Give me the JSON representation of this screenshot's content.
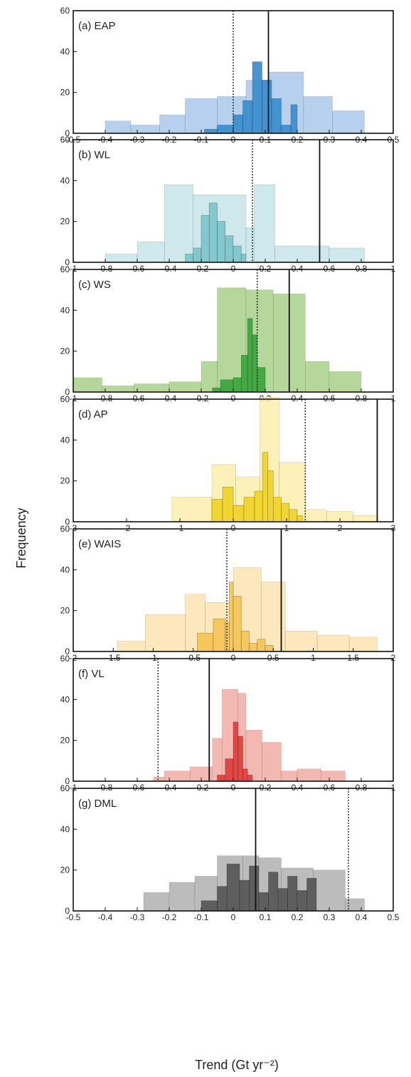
{
  "ylabel": "Frequency",
  "xlabel": "Trend (Gt yr⁻²)",
  "chart_data": [
    {
      "type": "bar",
      "title": "(a) EAP",
      "xlim": [
        -0.5,
        0.5
      ],
      "ylim": [
        0,
        60
      ],
      "xticks": [
        "-0.5",
        "-0.4",
        "-0.3",
        "-0.2",
        "-0.1",
        "0",
        "0.1",
        "0.2",
        "0.3",
        "0.4",
        "0.5"
      ],
      "yticks": [
        "0",
        "20",
        "40",
        "60"
      ],
      "colors": {
        "wide": "#a9c8ea",
        "narrow": "#3d8fd0"
      },
      "series": [
        {
          "edges": [
            -0.4,
            -0.32,
            -0.23,
            -0.15,
            -0.05,
            0.04,
            0.11,
            0.22,
            0.31,
            0.41
          ],
          "values": [
            6,
            4,
            9,
            17,
            18,
            26,
            30,
            18,
            11
          ]
        },
        {
          "edges": [
            -0.09,
            -0.05,
            0,
            0.03,
            0.06,
            0.09,
            0.12,
            0.15,
            0.18,
            0.2
          ],
          "values": [
            2,
            4,
            9,
            16,
            35,
            26,
            17,
            4,
            14
          ]
        }
      ],
      "lines": {
        "solid": 0.11,
        "dotted": 0.0
      }
    },
    {
      "type": "bar",
      "title": "(b) WL",
      "xlim": [
        -1,
        1
      ],
      "ylim": [
        0,
        60
      ],
      "xticks": [
        "-1",
        "-0.8",
        "-0.6",
        "-0.4",
        "-0.2",
        "0",
        "0.2",
        "0.4",
        "0.6",
        "0.8",
        "1"
      ],
      "yticks": [
        "0",
        "20",
        "40",
        "60"
      ],
      "colors": {
        "wide": "#c5e4e8",
        "narrow": "#7dc6cc"
      },
      "series": [
        {
          "edges": [
            -0.8,
            -0.6,
            -0.43,
            -0.25,
            0.08,
            0.13,
            0.26,
            0.6,
            0.82
          ],
          "values": [
            4,
            10,
            38,
            33,
            17,
            38,
            8,
            7
          ]
        },
        {
          "edges": [
            -0.3,
            -0.25,
            -0.2,
            -0.15,
            -0.1,
            -0.05,
            0,
            0.05,
            0.08
          ],
          "values": [
            4,
            7,
            23,
            29,
            20,
            13,
            8,
            4
          ]
        }
      ],
      "lines": {
        "solid": 0.54,
        "dotted": 0.12
      }
    },
    {
      "type": "bar",
      "title": "(c) WS",
      "xlim": [
        -1,
        1
      ],
      "ylim": [
        0,
        60
      ],
      "xticks": [
        "-1",
        "-0.8",
        "-0.6",
        "-0.4",
        "-0.2",
        "0",
        "0.2",
        "0.4",
        "0.6",
        "0.8",
        "1"
      ],
      "yticks": [
        "0",
        "20",
        "40",
        "60"
      ],
      "colors": {
        "wide": "#a8d08a",
        "narrow": "#3ea63e"
      },
      "series": [
        {
          "edges": [
            -1,
            -0.82,
            -0.62,
            -0.4,
            -0.2,
            -0.1,
            0.08,
            0.25,
            0.45,
            0.6,
            0.8
          ],
          "values": [
            7,
            3,
            4,
            5,
            15,
            51,
            50,
            48,
            15,
            10
          ]
        },
        {
          "edges": [
            -0.13,
            -0.08,
            0,
            0.05,
            0.09,
            0.12,
            0.15,
            0.2
          ],
          "values": [
            2,
            6,
            7,
            18,
            36,
            28,
            12
          ]
        }
      ],
      "lines": {
        "solid": 0.35,
        "dotted": 0.15
      }
    },
    {
      "type": "bar",
      "title": "(d) AP",
      "xlim": [
        -3,
        3
      ],
      "ylim": [
        0,
        60
      ],
      "xticks": [
        "-3",
        "-2",
        "-1",
        "0",
        "1",
        "2",
        "3"
      ],
      "yticks": [
        "0",
        "20",
        "40",
        "60"
      ],
      "colors": {
        "wide": "#fbeeac",
        "narrow": "#f0d42a"
      },
      "series": [
        {
          "edges": [
            -1.15,
            -0.4,
            0.05,
            0.5,
            0.86,
            1.35,
            1.75,
            2.25,
            2.7
          ],
          "values": [
            12,
            28,
            22,
            61,
            29,
            6,
            5,
            3
          ]
        },
        {
          "edges": [
            -0.4,
            -0.2,
            0,
            0.2,
            0.4,
            0.55,
            0.65,
            0.75,
            0.9,
            1.05,
            1.2,
            1.3
          ],
          "values": [
            11,
            17,
            8,
            12,
            15,
            34,
            25,
            12,
            9,
            6,
            3
          ]
        }
      ],
      "lines": {
        "solid": 2.7,
        "dotted": 1.35
      }
    },
    {
      "type": "bar",
      "title": "(e) WAIS",
      "xlim": [
        -2,
        2
      ],
      "ylim": [
        0,
        60
      ],
      "xticks": [
        "-2",
        "-1.5",
        "-1",
        "-0.5",
        "0",
        "0.5",
        "1",
        "1.5",
        "2"
      ],
      "yticks": [
        "0",
        "20",
        "40",
        "60"
      ],
      "colors": {
        "wide": "#fde3b0",
        "narrow": "#f3c65a"
      },
      "series": [
        {
          "edges": [
            -1.45,
            -1.1,
            -0.6,
            -0.35,
            0.0,
            0.35,
            0.65,
            1.05,
            1.45,
            1.8
          ],
          "values": [
            5,
            18,
            28,
            24,
            41,
            34,
            10,
            8,
            7
          ]
        },
        {
          "edges": [
            -0.45,
            -0.25,
            -0.1,
            -0.05,
            0,
            0.1,
            0.2,
            0.3,
            0.4,
            0.5
          ],
          "values": [
            9,
            16,
            14,
            34,
            27,
            10,
            4,
            6,
            3
          ]
        }
      ],
      "lines": {
        "solid": 0.6,
        "dotted": -0.08
      }
    },
    {
      "type": "bar",
      "title": "(f) VL",
      "xlim": [
        -1,
        1
      ],
      "ylim": [
        0,
        60
      ],
      "xticks": [
        "-1",
        "-0.8",
        "-0.6",
        "-0.4",
        "-0.2",
        "0",
        "0.2",
        "0.4",
        "0.6",
        "0.8",
        "1"
      ],
      "yticks": [
        "0",
        "20",
        "40",
        "60"
      ],
      "colors": {
        "wide": "#f2aca6",
        "narrow": "#e2403d"
      },
      "series": [
        {
          "edges": [
            -0.5,
            -0.43,
            -0.27,
            -0.13,
            -0.07,
            0.03,
            0.08,
            0.18,
            0.3,
            0.4,
            0.55,
            0.7
          ],
          "values": [
            2,
            5,
            7,
            21,
            45,
            43,
            25,
            19,
            5,
            6,
            5
          ]
        },
        {
          "edges": [
            -0.1,
            -0.05,
            0,
            0.03,
            0.06,
            0.09,
            0.12
          ],
          "values": [
            3,
            11,
            29,
            22,
            6,
            3
          ]
        }
      ],
      "lines": {
        "solid": -0.15,
        "dotted": -0.47
      }
    },
    {
      "type": "bar",
      "title": "(g) DML",
      "xlim": [
        -0.5,
        0.5
      ],
      "ylim": [
        0,
        60
      ],
      "xticks": [
        "-0.5",
        "-0.4",
        "-0.3",
        "-0.2",
        "-0.1",
        "0",
        "0.1",
        "0.2",
        "0.3",
        "0.4",
        "0.5"
      ],
      "yticks": [
        "0",
        "20",
        "40",
        "60"
      ],
      "colors": {
        "wide": "#b0b0b0",
        "narrow": "#595959"
      },
      "series": [
        {
          "edges": [
            -0.28,
            -0.2,
            -0.12,
            -0.05,
            0.03,
            0.08,
            0.15,
            0.25,
            0.35,
            0.41
          ],
          "values": [
            9,
            14,
            17,
            27,
            27,
            26,
            21,
            20,
            6
          ]
        },
        {
          "edges": [
            -0.1,
            -0.05,
            -0.02,
            0.02,
            0.05,
            0.08,
            0.11,
            0.14,
            0.17,
            0.2,
            0.23,
            0.26
          ],
          "values": [
            5,
            12,
            23,
            15,
            22,
            9,
            19,
            11,
            17,
            10,
            16
          ]
        }
      ],
      "lines": {
        "solid": 0.07,
        "dotted": 0.36
      }
    }
  ]
}
